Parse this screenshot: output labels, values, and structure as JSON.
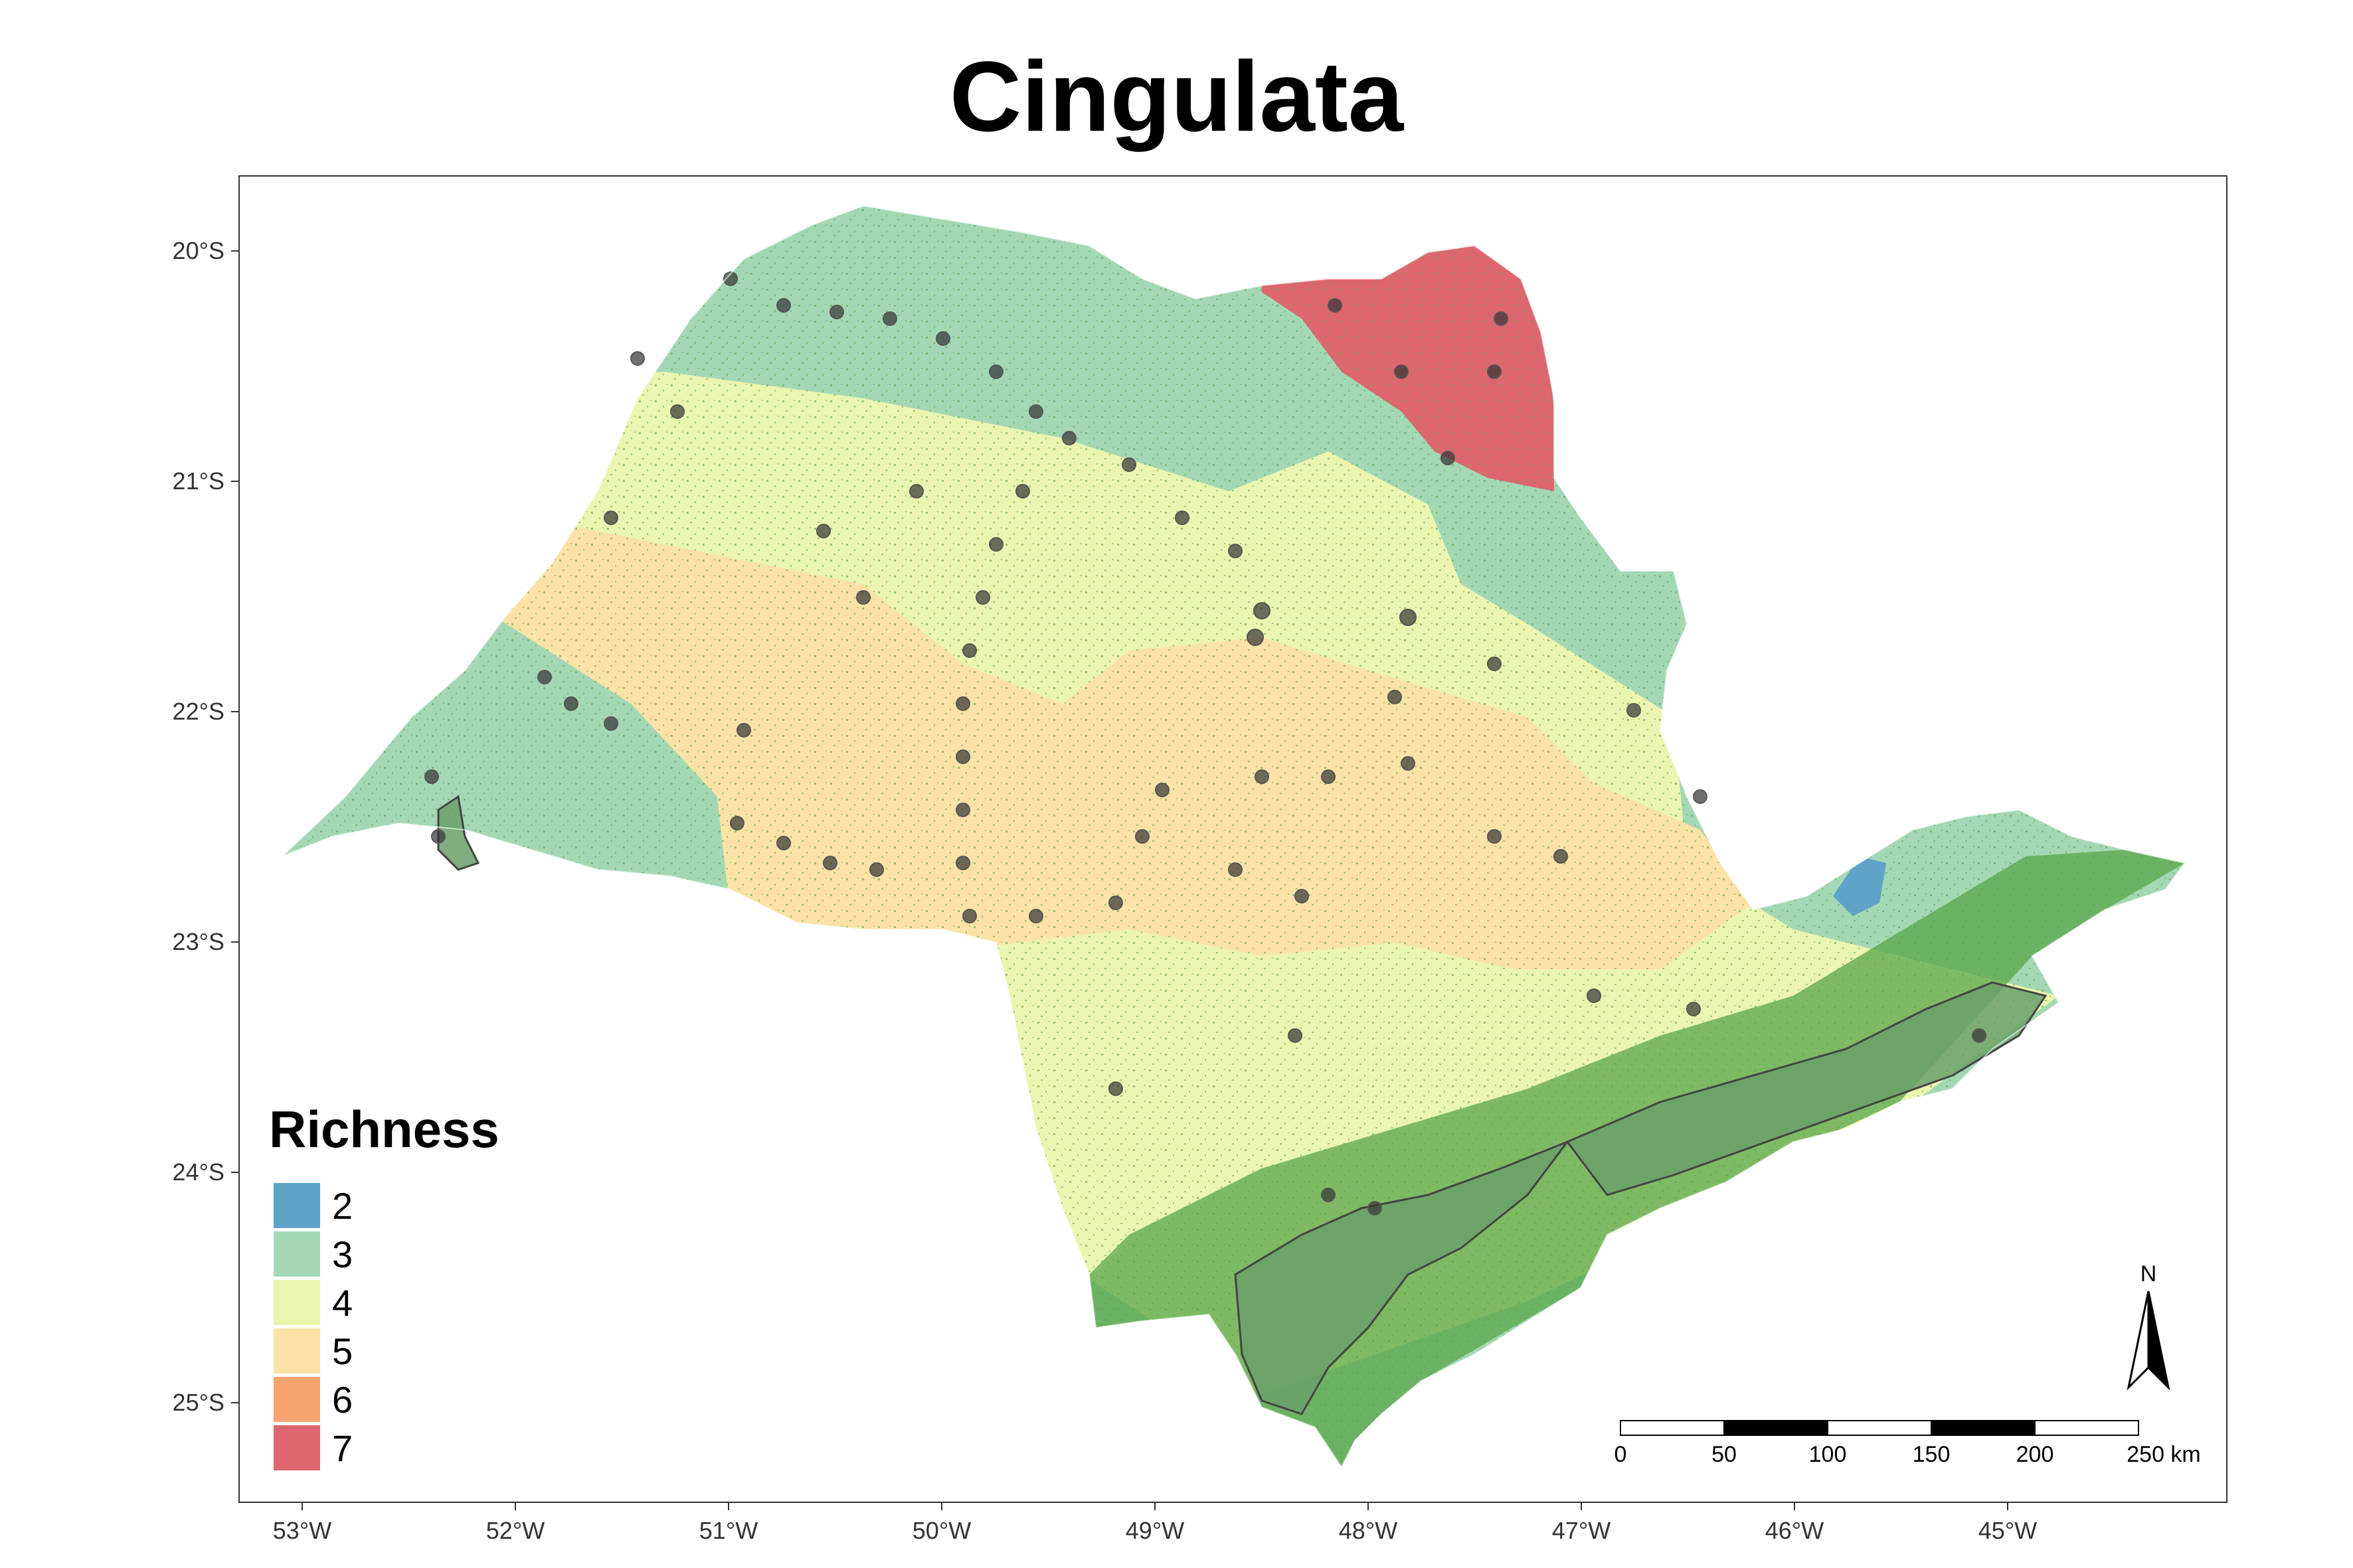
{
  "title": "Cingulata",
  "axes": {
    "x_ticks": [
      "53°W",
      "52°W",
      "51°W",
      "50°W",
      "49°W",
      "48°W",
      "47°W",
      "46°W",
      "45°W"
    ],
    "y_ticks": [
      "20°S",
      "21°S",
      "22°S",
      "23°S",
      "24°S",
      "25°S"
    ]
  },
  "legend": {
    "title": "Richness",
    "items": [
      {
        "label": "2",
        "color": "#5fa3c9"
      },
      {
        "label": "3",
        "color": "#a4d8b4"
      },
      {
        "label": "4",
        "color": "#eaf5b0"
      },
      {
        "label": "5",
        "color": "#fbe2a6"
      },
      {
        "label": "6",
        "color": "#f7a472"
      },
      {
        "label": "7",
        "color": "#de6670"
      }
    ]
  },
  "scale_bar": {
    "labels": [
      "0",
      "50",
      "100",
      "150",
      "200",
      "250 km"
    ]
  },
  "north_arrow": {
    "label": "N"
  },
  "colors": {
    "forest": "#5aa64a",
    "protected_area": "#6aa06a",
    "occurrence_point": "#333333"
  }
}
